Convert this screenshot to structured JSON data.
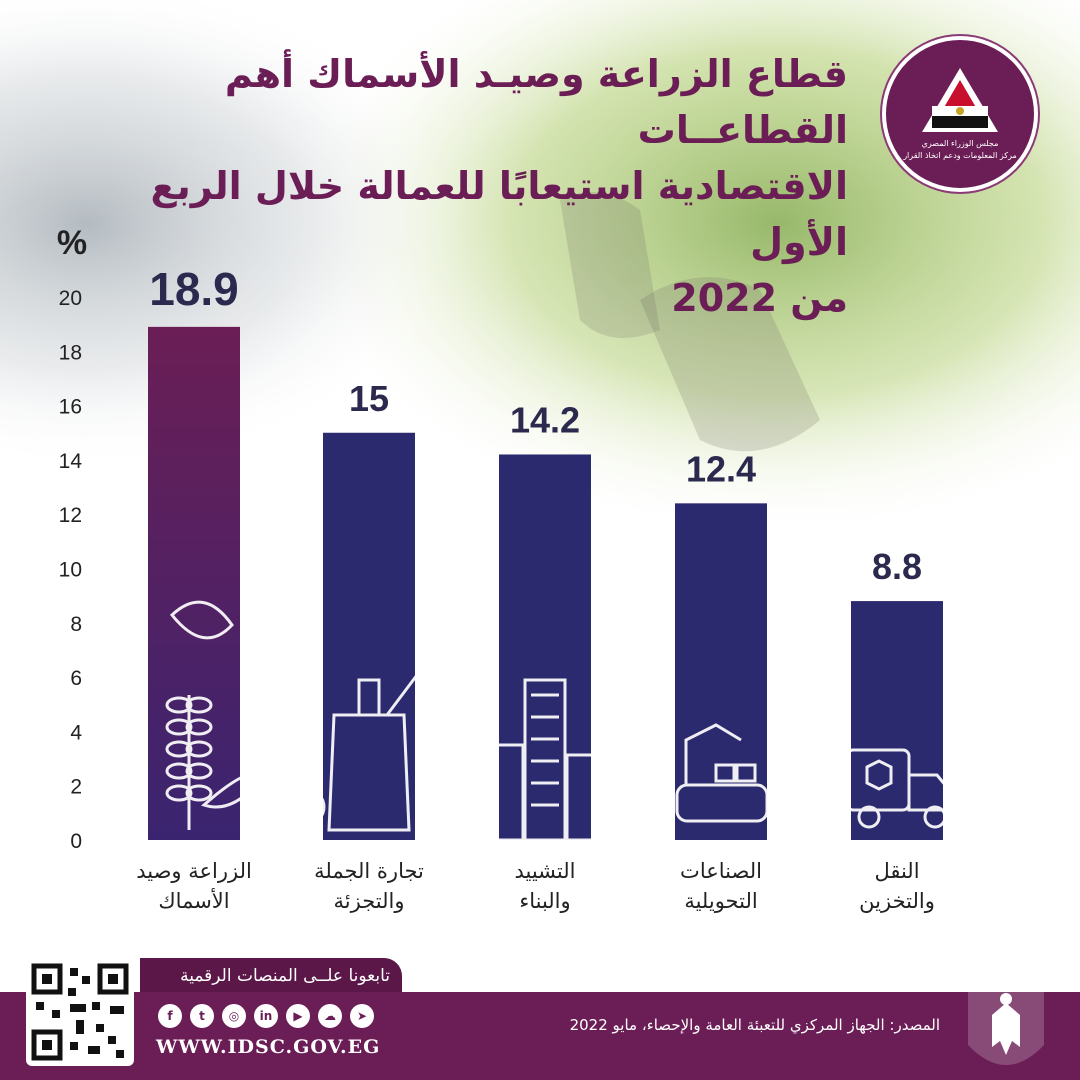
{
  "header": {
    "title_lines": [
      "قطاع الزراعة وصيـد الأسماك أهم القطاعــات",
      "الاقتصادية استيعابًا للعمالة خلال الربع الأول",
      "من 2022"
    ],
    "logo_lines": [
      "مجلس الوزراء المصري",
      "مركز المعلومات ودعم اتخاذ القرار"
    ]
  },
  "chart_data": {
    "type": "bar",
    "unit_label": "%",
    "categories": [
      [
        "الزراعة وصيد",
        "الأسماك"
      ],
      [
        "تجارة الجملة",
        "والتجزئة"
      ],
      [
        "التشييد",
        "والبناء"
      ],
      [
        "الصناعات",
        "التحويلية"
      ],
      [
        "النقل",
        "والتخزين"
      ]
    ],
    "values": [
      18.9,
      15,
      14.2,
      12.4,
      8.8
    ],
    "value_labels": [
      "18.9",
      "15",
      "14.2",
      "12.4",
      "8.8"
    ],
    "icons": [
      "wheat-fish-icon",
      "grocery-bag-icon",
      "buildings-icon",
      "robot-arm-icon",
      "delivery-truck-icon"
    ],
    "ylim": [
      0,
      20
    ],
    "yticks": [
      0,
      2,
      4,
      6,
      8,
      10,
      12,
      14,
      16,
      18,
      20
    ],
    "grid": false,
    "colors": {
      "highlight_top": "#6b1e55",
      "highlight_bottom": "#3a2470",
      "bar": "#2b2a6e",
      "value_text": "#2b2a4e",
      "axis_text": "#222222"
    }
  },
  "footer": {
    "follow_text": "تابعونا علــى المنصات الرقمية",
    "url": "WWW.IDSC.GOV.EG",
    "source": "المصدر: الجهاز المركزي للتعبئة العامة والإحصاء، مايو 2022",
    "social_icons": [
      "facebook-icon",
      "twitter-icon",
      "instagram-icon",
      "linkedin-icon",
      "youtube-icon",
      "soundcloud-icon",
      "telegram-icon"
    ],
    "social_glyphs": [
      "f",
      "t",
      "◎",
      "in",
      "▶",
      "☁",
      "➤"
    ]
  }
}
